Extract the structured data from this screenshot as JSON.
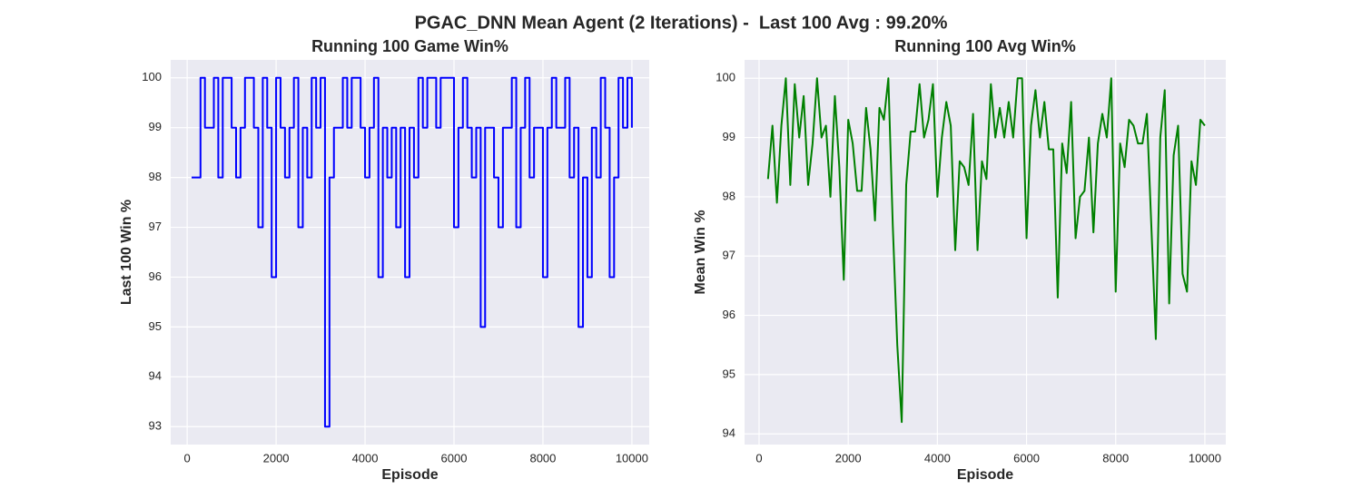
{
  "title": "PGAC_DNN Mean Agent (2 Iterations) -  Last 100 Avg : 99.20%",
  "chart_data": [
    {
      "type": "line",
      "title": "Running 100 Game Win%",
      "x_label": "Episode",
      "y_label": "Last 100 Win %",
      "drawstyle": "steps-post",
      "grid": true,
      "x": [
        100,
        200,
        300,
        400,
        500,
        600,
        700,
        800,
        900,
        1000,
        1100,
        1200,
        1300,
        1400,
        1500,
        1600,
        1700,
        1800,
        1900,
        2000,
        2100,
        2200,
        2300,
        2400,
        2500,
        2600,
        2700,
        2800,
        2900,
        3000,
        3100,
        3200,
        3300,
        3400,
        3500,
        3600,
        3700,
        3800,
        3900,
        4000,
        4100,
        4200,
        4300,
        4400,
        4500,
        4600,
        4700,
        4800,
        4900,
        5000,
        5100,
        5200,
        5300,
        5400,
        5500,
        5600,
        5700,
        5800,
        5900,
        6000,
        6100,
        6200,
        6300,
        6400,
        6500,
        6600,
        6700,
        6800,
        6900,
        7000,
        7100,
        7200,
        7300,
        7400,
        7500,
        7600,
        7700,
        7800,
        7900,
        8000,
        8100,
        8200,
        8300,
        8400,
        8500,
        8600,
        8700,
        8800,
        8900,
        9000,
        9100,
        9200,
        9300,
        9400,
        9500,
        9600,
        9700,
        9800,
        9900,
        10000
      ],
      "series": [
        {
          "color": "#0000ff",
          "values": [
            98,
            98,
            100,
            99,
            99,
            100,
            98,
            100,
            100,
            99,
            98,
            99,
            100,
            100,
            99,
            97,
            100,
            99,
            96,
            100,
            99,
            98,
            99,
            100,
            97,
            99,
            98,
            100,
            99,
            100,
            93,
            98,
            99,
            99,
            100,
            99,
            100,
            100,
            99,
            98,
            99,
            100,
            96,
            99,
            98,
            99,
            97,
            99,
            96,
            99,
            98,
            100,
            99,
            100,
            100,
            99,
            100,
            100,
            100,
            97,
            99,
            100,
            99,
            98,
            99,
            95,
            99,
            99,
            98,
            97,
            99,
            99,
            100,
            97,
            99,
            100,
            98,
            99,
            99,
            96,
            99,
            100,
            99,
            99,
            100,
            98,
            99,
            95,
            98,
            96,
            99,
            98,
            100,
            99,
            96,
            98,
            100,
            99,
            100,
            99
          ]
        }
      ],
      "xlim": [
        -370,
        10390
      ],
      "xticks": [
        0,
        2000,
        4000,
        6000,
        8000,
        10000
      ],
      "ylim": [
        92.64,
        100.36
      ],
      "yticks": [
        93,
        94,
        95,
        96,
        97,
        98,
        99,
        100
      ]
    },
    {
      "type": "line",
      "title": "Running 100 Avg Win%",
      "x_label": "Episode",
      "y_label": "Mean Win %",
      "drawstyle": "default",
      "grid": true,
      "x": [
        200,
        300,
        400,
        500,
        600,
        700,
        800,
        900,
        1000,
        1100,
        1200,
        1300,
        1400,
        1500,
        1600,
        1700,
        1800,
        1900,
        2000,
        2100,
        2200,
        2300,
        2400,
        2500,
        2600,
        2700,
        2800,
        2900,
        3000,
        3100,
        3200,
        3300,
        3400,
        3500,
        3600,
        3700,
        3800,
        3900,
        4000,
        4100,
        4200,
        4300,
        4400,
        4500,
        4600,
        4700,
        4800,
        4900,
        5000,
        5100,
        5200,
        5300,
        5400,
        5500,
        5600,
        5700,
        5800,
        5900,
        6000,
        6100,
        6200,
        6300,
        6400,
        6500,
        6600,
        6700,
        6800,
        6900,
        7000,
        7100,
        7200,
        7300,
        7400,
        7500,
        7600,
        7700,
        7800,
        7900,
        8000,
        8100,
        8200,
        8300,
        8400,
        8500,
        8600,
        8700,
        8800,
        8900,
        9000,
        9100,
        9200,
        9300,
        9400,
        9500,
        9600,
        9700,
        9800,
        9900,
        10000
      ],
      "series": [
        {
          "color": "#008000",
          "values": [
            98.3,
            99.2,
            97.9,
            99.2,
            100,
            98.2,
            99.9,
            99,
            99.7,
            98.2,
            98.9,
            100,
            99,
            99.2,
            98,
            99.7,
            98.5,
            96.6,
            99.3,
            98.9,
            98.1,
            98.1,
            99.5,
            98.8,
            97.6,
            99.5,
            99.3,
            100,
            97.5,
            95.5,
            94.2,
            98.2,
            99.1,
            99.1,
            99.9,
            99.0,
            99.3,
            99.9,
            98.0,
            99.0,
            99.6,
            99.2,
            97.1,
            98.6,
            98.5,
            98.2,
            99.4,
            97.1,
            98.6,
            98.3,
            99.9,
            99.0,
            99.5,
            99.0,
            99.6,
            99.0,
            100,
            100,
            97.3,
            99.2,
            99.8,
            99.0,
            99.6,
            98.8,
            98.8,
            96.3,
            98.9,
            98.4,
            99.6,
            97.3,
            98.0,
            98.1,
            99.0,
            97.4,
            98.9,
            99.4,
            99.0,
            100,
            96.4,
            98.9,
            98.5,
            99.3,
            99.2,
            98.9,
            98.9,
            99.4,
            97.5,
            95.6,
            99.0,
            99.8,
            96.2,
            98.7,
            99.2,
            96.7,
            96.4,
            98.6,
            98.2,
            99.3,
            99.2
          ]
        }
      ],
      "xlim": [
        -326,
        10470
      ],
      "xticks": [
        0,
        2000,
        4000,
        6000,
        8000,
        10000
      ],
      "ylim": [
        93.82,
        100.31
      ],
      "yticks": [
        94,
        95,
        96,
        97,
        98,
        99,
        100
      ]
    }
  ]
}
